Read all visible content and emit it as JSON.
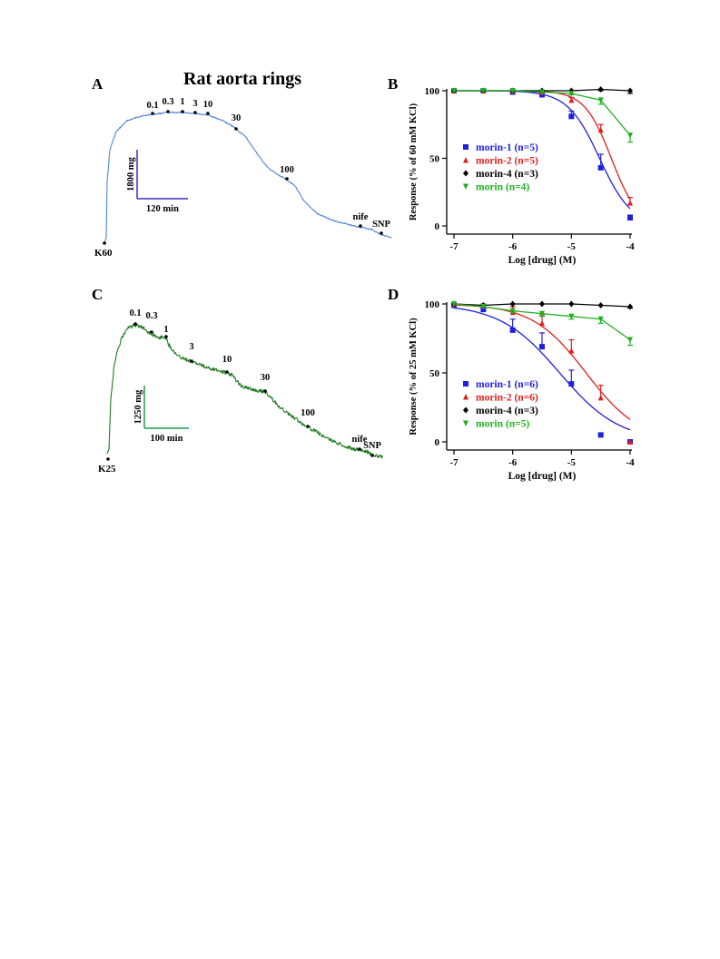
{
  "figure": {
    "title": "Rat aorta rings",
    "panel_labels": {
      "A": "A",
      "B": "B",
      "C": "C",
      "D": "D"
    }
  },
  "colors": {
    "morin_1": "#1f1fe0",
    "morin_2": "#e01f1f",
    "morin_4": "#000000",
    "morin": "#1fb01f",
    "trace_A": "#4f86d6",
    "trace_C": "#1f7a1f",
    "scale_A": "#3b2fc9",
    "scale_C": "#1f9a4a"
  },
  "traces": [
    {
      "panel": "A",
      "color_key": "trace_A",
      "start_label": "K60",
      "concentration_labels": [
        "0.1",
        "0.3",
        "1",
        "3",
        "10",
        "30",
        "100",
        "nife",
        "SNP"
      ],
      "scale_bar": {
        "vertical": "1800 mg",
        "horizontal": "120 min"
      }
    },
    {
      "panel": "C",
      "color_key": "trace_C",
      "start_label": "K25",
      "concentration_labels": [
        "0.1",
        "0.3",
        "1",
        "3",
        "10",
        "30",
        "100",
        "nife",
        "SNP"
      ],
      "scale_bar": {
        "vertical": "1250 mg",
        "horizontal": "100 min"
      }
    }
  ],
  "chart_data": [
    {
      "panel": "B",
      "type": "scatter",
      "xlabel": "Log [drug] (M)",
      "ylabel": "Response (% of 60 mM KCl)",
      "xlim": [
        -7,
        -4
      ],
      "ylim": [
        0,
        100
      ],
      "xticks": [
        "-7",
        "-6",
        "-5",
        "-4"
      ],
      "yticks": [
        "0",
        "50",
        "100"
      ],
      "legend_position": "left-middle",
      "series": [
        {
          "name": "morin-1 (n=5)",
          "color_key": "morin_1",
          "marker": "square",
          "x": [
            -7,
            -6.5,
            -6,
            -5.5,
            -5,
            -4.5,
            -4
          ],
          "y": [
            100,
            100,
            99,
            97,
            81,
            43,
            6
          ],
          "err": [
            0,
            0,
            1,
            1,
            4,
            10,
            2
          ],
          "fit": {
            "top": 100,
            "bottom": 0,
            "logEC50": -4.52,
            "hill": 1.6
          }
        },
        {
          "name": "morin-2 (n=5)",
          "color_key": "morin_2",
          "marker": "triangle-up",
          "x": [
            -7,
            -6.5,
            -6,
            -5.5,
            -5,
            -4.5,
            -4
          ],
          "y": [
            100,
            100,
            100,
            99,
            93,
            71,
            17
          ],
          "err": [
            0,
            0,
            0,
            1,
            2,
            4,
            4
          ],
          "fit": {
            "top": 100,
            "bottom": 0,
            "logEC50": -4.32,
            "hill": 1.9
          }
        },
        {
          "name": "morin-4 (n=3)",
          "color_key": "morin_4",
          "marker": "diamond",
          "x": [
            -7,
            -6.5,
            -6,
            -5.5,
            -5,
            -4.5,
            -4
          ],
          "y": [
            100,
            100,
            100,
            100,
            100,
            101,
            100
          ],
          "err": [
            0,
            0,
            0,
            0,
            0,
            1,
            2
          ]
        },
        {
          "name": "morin (n=4)",
          "color_key": "morin",
          "marker": "triangle-down",
          "x": [
            -7,
            -6.5,
            -6,
            -5.5,
            -5,
            -4.5,
            -4
          ],
          "y": [
            100,
            100,
            100,
            99,
            98,
            93,
            67
          ],
          "err": [
            0,
            0,
            0,
            0,
            1,
            3,
            5
          ]
        }
      ]
    },
    {
      "panel": "D",
      "type": "scatter",
      "xlabel": "Log [drug] (M)",
      "ylabel": "Response (% of 25 mM KCl)",
      "xlim": [
        -7,
        -4
      ],
      "ylim": [
        0,
        100
      ],
      "xticks": [
        "-7",
        "-6",
        "-5",
        "-4"
      ],
      "yticks": [
        "0",
        "50",
        "100"
      ],
      "legend_position": "left-middle",
      "series": [
        {
          "name": "morin-1 (n=6)",
          "color_key": "morin_1",
          "marker": "square",
          "x": [
            -7,
            -6.5,
            -6,
            -5.5,
            -5,
            -4.5,
            -4
          ],
          "y": [
            99,
            96,
            81,
            69,
            42,
            5,
            0
          ],
          "err": [
            0,
            1,
            8,
            10,
            10,
            1,
            0
          ],
          "fit": {
            "top": 100,
            "bottom": 0,
            "logEC50": -5.2,
            "hill": 0.85
          }
        },
        {
          "name": "morin-2 (n=6)",
          "color_key": "morin_2",
          "marker": "triangle-up",
          "x": [
            -7,
            -6.5,
            -6,
            -5.5,
            -5,
            -4.5,
            -4
          ],
          "y": [
            100,
            99,
            94,
            86,
            66,
            32,
            0
          ],
          "err": [
            0,
            1,
            4,
            6,
            8,
            9,
            0
          ],
          "fit": {
            "top": 100,
            "bottom": 0,
            "logEC50": -4.75,
            "hill": 0.95
          }
        },
        {
          "name": "morin-4 (n=3)",
          "color_key": "morin_4",
          "marker": "diamond",
          "x": [
            -7,
            -6.5,
            -6,
            -5.5,
            -5,
            -4.5,
            -4
          ],
          "y": [
            100,
            99,
            100,
            100,
            100,
            99,
            98
          ],
          "err": [
            0,
            0,
            0,
            0,
            0,
            0,
            1
          ]
        },
        {
          "name": "morin (n=5)",
          "color_key": "morin",
          "marker": "triangle-down",
          "x": [
            -7,
            -6.5,
            -6,
            -5.5,
            -5,
            -4.5,
            -4
          ],
          "y": [
            100,
            98,
            95,
            93,
            91,
            89,
            74
          ],
          "err": [
            0,
            0,
            1,
            2,
            2,
            3,
            4
          ]
        }
      ]
    }
  ]
}
